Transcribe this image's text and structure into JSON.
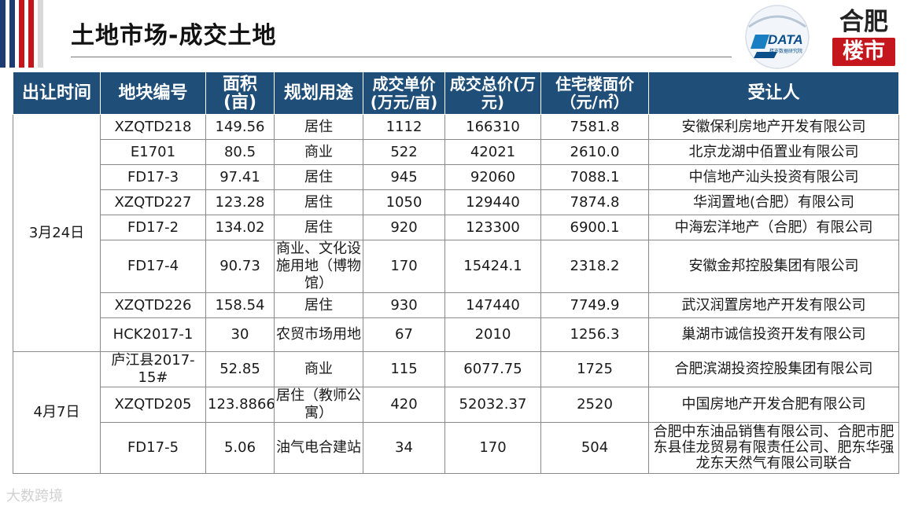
{
  "slide": {
    "title": "土地市场-成交土地",
    "watermark": "大数跨境",
    "accent_colors": {
      "navy": "#1f3b73",
      "red": "#c4161c",
      "header_blue": "#1f4e79"
    }
  },
  "logos": {
    "kdata": {
      "text": "DATA",
      "subtext": "楼市数据研究院"
    },
    "hefei": {
      "line1": "合肥",
      "line2": "楼市"
    }
  },
  "table": {
    "headers": [
      "出让时间",
      "地块编号",
      "面积(亩)",
      "规划用途",
      "成交单价(万元/亩)",
      "成交总价(万元)",
      "住宅楼面价（元/㎡）",
      "受让人"
    ],
    "groups": [
      {
        "date": "3月24日",
        "rows": [
          {
            "parcel": "XZQTD218",
            "area": "149.56",
            "use": "居住",
            "unit_price": "1112",
            "total_price": "166310",
            "floor_price": "7581.8",
            "buyer": "安徽保利房地产开发有限公司"
          },
          {
            "parcel": "E1701",
            "area": "80.5",
            "use": "商业",
            "unit_price": "522",
            "total_price": "42021",
            "floor_price": "2610.0",
            "buyer": "北京龙湖中佰置业有限公司"
          },
          {
            "parcel": "FD17-3",
            "area": "97.41",
            "use": "居住",
            "unit_price": "945",
            "total_price": "92060",
            "floor_price": "7088.1",
            "buyer": "中信地产汕头投资有限公司"
          },
          {
            "parcel": "XZQTD227",
            "area": "123.28",
            "use": "居住",
            "unit_price": "1050",
            "total_price": "129440",
            "floor_price": "7874.8",
            "buyer": "华润置地(合肥）有限公司"
          },
          {
            "parcel": "FD17-2",
            "area": "134.02",
            "use": "居住",
            "unit_price": "920",
            "total_price": "123300",
            "floor_price": "6900.1",
            "buyer": "中海宏洋地产（合肥）有限公司"
          },
          {
            "parcel": "FD17-4",
            "area": "90.73",
            "use": "商业、文化设施用地（博物馆）",
            "unit_price": "170",
            "total_price": "15424.1",
            "floor_price": "2318.2",
            "buyer": "安徽金邦控股集团有限公司"
          },
          {
            "parcel": "XZQTD226",
            "area": "158.54",
            "use": "居住",
            "unit_price": "930",
            "total_price": "147440",
            "floor_price": "7749.9",
            "buyer": "武汉润置房地产开发有限公司"
          },
          {
            "parcel": "HCK2017-1",
            "area": "30",
            "use": "农贸市场用地",
            "unit_price": "67",
            "total_price": "2010",
            "floor_price": "1256.3",
            "buyer": "巢湖市诚信投资开发有限公司"
          }
        ]
      },
      {
        "date": "4月7日",
        "rows": [
          {
            "parcel": "庐江县2017-15#",
            "area": "52.85",
            "use": "商业",
            "unit_price": "115",
            "total_price": "6077.75",
            "floor_price": "1725",
            "buyer": "合肥滨湖投资控股集团有限公司"
          },
          {
            "parcel": "XZQTD205",
            "area": "123.8866",
            "use": "居住（教师公寓）",
            "unit_price": "420",
            "total_price": "52032.37",
            "floor_price": "2520",
            "buyer": "中国房地产开发合肥有限公司"
          },
          {
            "parcel": "FD17-5",
            "area": "5.06",
            "use": "油气电合建站",
            "unit_price": "34",
            "total_price": "170",
            "floor_price": "504",
            "buyer": "合肥中东油品销售有限公司、合肥市肥东县佳龙贸易有限责任公司、肥东华强龙东天然气有限公司联合"
          }
        ]
      }
    ]
  }
}
